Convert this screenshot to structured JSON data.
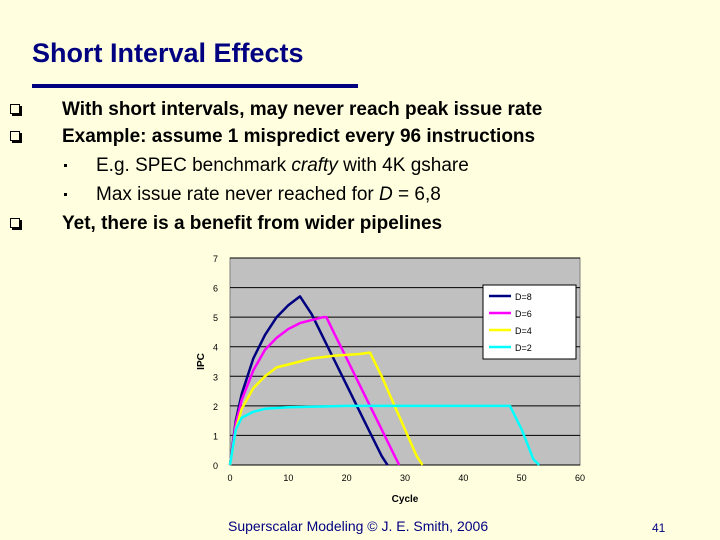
{
  "slide": {
    "title": "Short Interval Effects",
    "bullets": [
      "With short intervals, may never reach peak issue rate",
      "Example: assume 1 mispredict every 96 instructions",
      "Yet, there is a benefit from wider pipelines"
    ],
    "subbullet1_prefix": "E.g. SPEC benchmark ",
    "subbullet1_italic": "crafty",
    "subbullet1_suffix": " with 4K gshare",
    "subbullet2_prefix": "Max issue rate never reached for ",
    "subbullet2_italic": "D",
    "subbullet2_suffix": " = 6,8",
    "footer": "Superscalar Modeling © J. E. Smith, 2006",
    "page_number": "41"
  },
  "colors": {
    "title": "#000080",
    "plot_bg": "#c0c0c0",
    "D8": "#000080",
    "D6": "#ff00ff",
    "D4": "#ffff00",
    "D2": "#00ffff"
  },
  "chart_data": {
    "type": "line",
    "xlabel": "Cycle",
    "ylabel": "IPC",
    "xlim": [
      0,
      60
    ],
    "ylim": [
      0,
      7
    ],
    "x_ticks": [
      "0",
      "10",
      "20",
      "30",
      "40",
      "50",
      "60"
    ],
    "y_ticks": [
      "0",
      "1",
      "2",
      "3",
      "4",
      "5",
      "6",
      "7"
    ],
    "grid": "horizontal",
    "legend_position": "top-right",
    "series": [
      {
        "name": "D=8",
        "x": [
          0,
          1,
          2,
          4,
          6,
          8,
          10,
          12,
          14,
          16,
          18,
          20,
          22,
          24,
          26,
          27
        ],
        "y": [
          0,
          1.5,
          2.4,
          3.6,
          4.4,
          5.0,
          5.4,
          5.7,
          5.1,
          4.3,
          3.5,
          2.7,
          1.9,
          1.1,
          0.3,
          0
        ]
      },
      {
        "name": "D=6",
        "x": [
          0,
          1,
          2,
          4,
          6,
          8,
          10,
          12,
          14,
          16,
          16.5,
          18,
          20,
          22,
          24,
          26,
          28,
          29
        ],
        "y": [
          0,
          1.4,
          2.2,
          3.2,
          3.9,
          4.3,
          4.6,
          4.8,
          4.9,
          5.0,
          5.0,
          4.4,
          3.6,
          2.8,
          2.0,
          1.2,
          0.4,
          0
        ]
      },
      {
        "name": "D=4",
        "x": [
          0,
          1,
          2,
          4,
          6,
          8,
          10,
          14,
          18,
          22,
          24,
          26,
          28,
          30,
          32,
          33
        ],
        "y": [
          0,
          1.2,
          1.9,
          2.6,
          3.0,
          3.3,
          3.4,
          3.6,
          3.7,
          3.75,
          3.8,
          3.0,
          2.1,
          1.2,
          0.3,
          0
        ]
      },
      {
        "name": "D=2",
        "x": [
          0,
          1,
          2,
          4,
          6,
          10,
          20,
          30,
          40,
          48,
          49,
          50,
          51,
          52,
          53
        ],
        "y": [
          0,
          1.2,
          1.6,
          1.8,
          1.9,
          1.95,
          2.0,
          2.0,
          2.0,
          2.0,
          1.6,
          1.2,
          0.7,
          0.2,
          0
        ]
      }
    ]
  }
}
